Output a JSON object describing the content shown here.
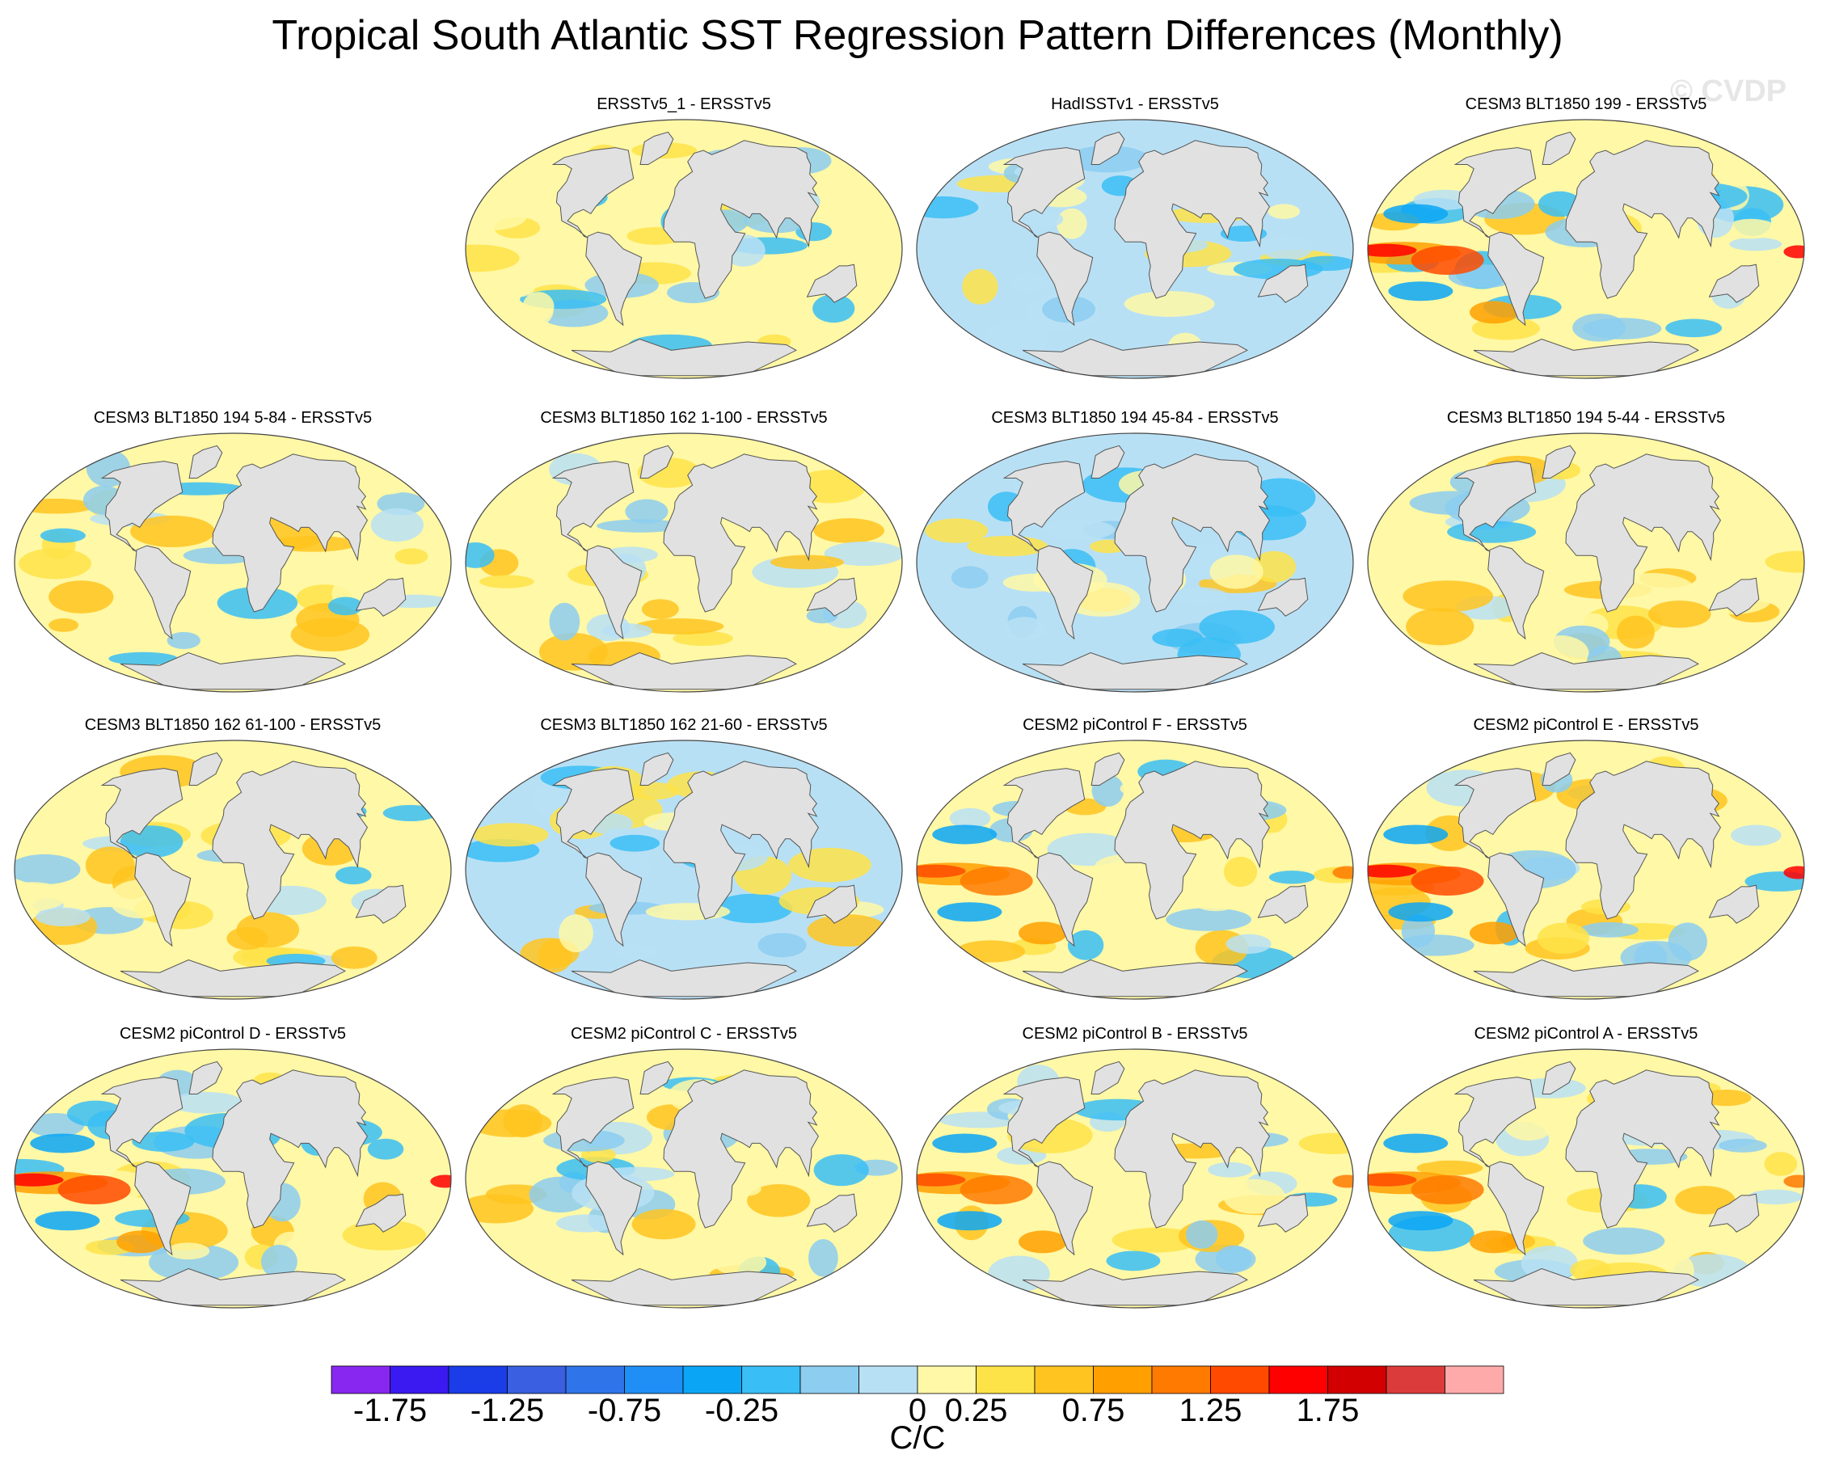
{
  "title": "Tropical South Atlantic SST Regression Pattern Differences (Monthly)",
  "watermark": "© CVDP",
  "units": "C/C",
  "projection": "Robinson",
  "colorbar": {
    "colors": [
      "#8727f0",
      "#3a1af0",
      "#1a3de8",
      "#3a5fe0",
      "#2f74e8",
      "#1f8ff5",
      "#0aa6f5",
      "#39bef5",
      "#8ccdf0",
      "#b8e0f5",
      "#fff8a6",
      "#fee348",
      "#ffc420",
      "#ffa000",
      "#ff7a00",
      "#ff4a00",
      "#ff0000",
      "#d20000",
      "#dc3b3b",
      "#ffaaaa"
    ],
    "tick_labels": [
      "-1.75",
      "-1.25",
      "-0.75",
      "-0.25",
      "0",
      "0.25",
      "0.75",
      "1.25",
      "1.75"
    ]
  },
  "panels": [
    {
      "title": "ERSSTv5_1 - ERSSTv5",
      "row": 0,
      "col": 1,
      "pattern": "noise"
    },
    {
      "title": "HadISSTv1 - ERSSTv5",
      "row": 0,
      "col": 2,
      "pattern": "noise_cool"
    },
    {
      "title": "CESM3 BLT1850 199 - ERSSTv5",
      "row": 0,
      "col": 3,
      "pattern": "enso_strong"
    },
    {
      "title": "CESM3 BLT1850 194 5-84 - ERSSTv5",
      "row": 1,
      "col": 0,
      "pattern": "warm"
    },
    {
      "title": "CESM3 BLT1850 162 1-100 - ERSSTv5",
      "row": 1,
      "col": 1,
      "pattern": "mixed"
    },
    {
      "title": "CESM3 BLT1850 194 45-84 - ERSSTv5",
      "row": 1,
      "col": 2,
      "pattern": "mixed_cool"
    },
    {
      "title": "CESM3 BLT1850 194 5-44 - ERSSTv5",
      "row": 1,
      "col": 3,
      "pattern": "warm"
    },
    {
      "title": "CESM3 BLT1850 162 61-100 - ERSSTv5",
      "row": 2,
      "col": 0,
      "pattern": "mixed"
    },
    {
      "title": "CESM3 BLT1850 162 21-60 - ERSSTv5",
      "row": 2,
      "col": 1,
      "pattern": "mixed_cool"
    },
    {
      "title": "CESM2 piControl F - ERSSTv5",
      "row": 2,
      "col": 2,
      "pattern": "enso"
    },
    {
      "title": "CESM2 piControl E - ERSSTv5",
      "row": 2,
      "col": 3,
      "pattern": "enso_strong"
    },
    {
      "title": "CESM2 piControl D - ERSSTv5",
      "row": 3,
      "col": 0,
      "pattern": "enso_strong"
    },
    {
      "title": "CESM2 piControl C - ERSSTv5",
      "row": 3,
      "col": 1,
      "pattern": "warm"
    },
    {
      "title": "CESM2 piControl B - ERSSTv5",
      "row": 3,
      "col": 2,
      "pattern": "enso"
    },
    {
      "title": "CESM2 piControl A - ERSSTv5",
      "row": 3,
      "col": 3,
      "pattern": "enso"
    }
  ]
}
